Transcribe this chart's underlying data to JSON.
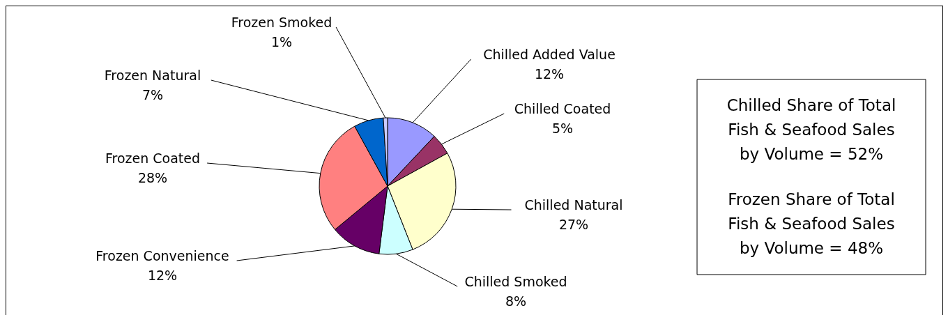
{
  "chart_data": {
    "type": "pie",
    "categories": [
      "Chilled Added Value",
      "Chilled Coated",
      "Chilled Natural",
      "Chilled Smoked",
      "Frozen Convenience",
      "Frozen Coated",
      "Frozen Natural",
      "Frozen Smoked"
    ],
    "values": [
      12,
      5,
      27,
      8,
      12,
      28,
      7,
      1
    ],
    "value_labels": [
      "12%",
      "5%",
      "27%",
      "8%",
      "12%",
      "28%",
      "7%",
      "1%"
    ],
    "colors": [
      "#9999ff",
      "#993366",
      "#ffffcc",
      "#ccffff",
      "#660066",
      "#ff8080",
      "#0066cc",
      "#ccccff"
    ],
    "annotations": [
      "Chilled Share of Total Fish & Seafood Sales by Volume = 52%",
      "Frozen Share of Total Fish & Seafood Sales by Volume = 48%"
    ]
  }
}
